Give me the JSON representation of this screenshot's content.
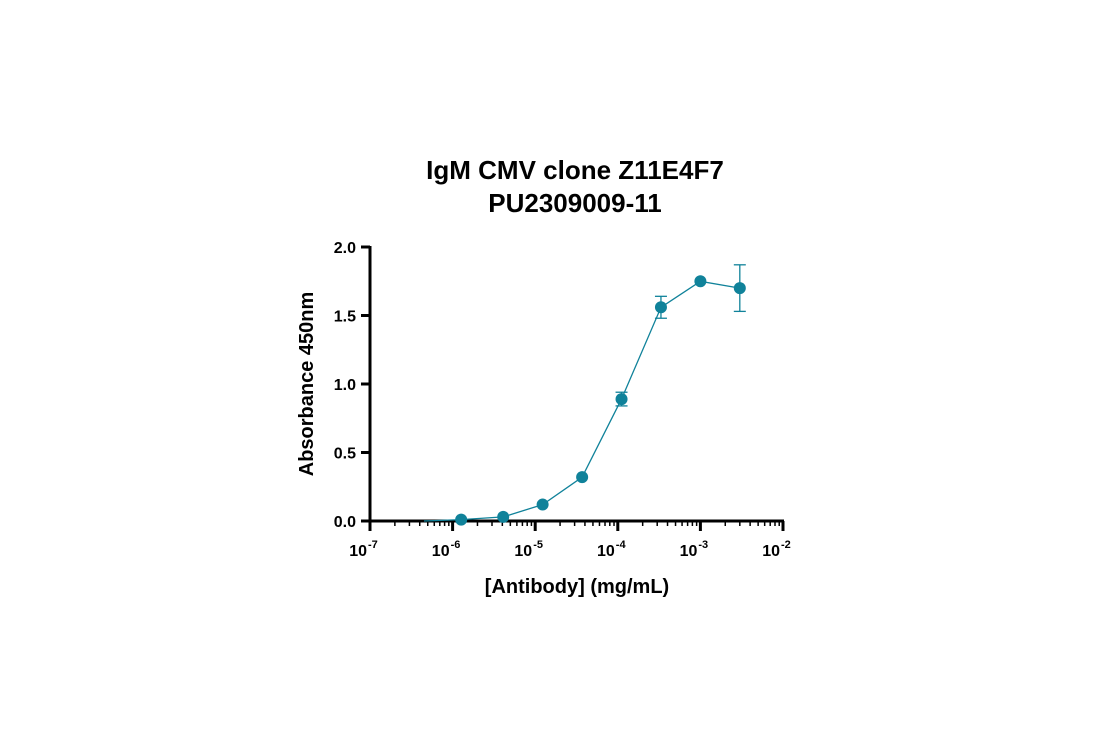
{
  "chart_data": {
    "type": "scatter",
    "title_lines": [
      "IgM CMV clone Z11E4F7",
      "PU2309009-11"
    ],
    "xlabel": "[Antibody] (mg/mL)",
    "ylabel": "Absorbance 450nm",
    "x_scale": "log10",
    "xlim": [
      1e-07,
      0.01
    ],
    "ylim": [
      0,
      2.0
    ],
    "x_ticks": [
      {
        "base": "10",
        "exp": "-7"
      },
      {
        "base": "10",
        "exp": "-6"
      },
      {
        "base": "10",
        "exp": "-5"
      },
      {
        "base": "10",
        "exp": "-4"
      },
      {
        "base": "10",
        "exp": "-3"
      },
      {
        "base": "10",
        "exp": "-2"
      }
    ],
    "y_ticks": [
      "0.0",
      "0.5",
      "1.0",
      "1.5",
      "2.0"
    ],
    "marker_color": "#10829a",
    "series": [
      {
        "points": [
          {
            "x": 1.27e-06,
            "y": 0.01,
            "err": 0.0
          },
          {
            "x": 4.1e-06,
            "y": 0.03,
            "err": 0.0
          },
          {
            "x": 1.23e-05,
            "y": 0.12,
            "err": 0.0
          },
          {
            "x": 3.7e-05,
            "y": 0.32,
            "err": 0.0
          },
          {
            "x": 0.000111,
            "y": 0.89,
            "err": 0.05
          },
          {
            "x": 0.000333,
            "y": 1.56,
            "err": 0.08
          },
          {
            "x": 0.001,
            "y": 1.75,
            "err": 0.0
          },
          {
            "x": 0.003,
            "y": 1.7,
            "err": 0.17
          }
        ],
        "fit_curve": [
          {
            "x": 4.5e-07,
            "y": 0.0
          },
          {
            "x": 1.27e-06,
            "y": 0.01
          },
          {
            "x": 4.1e-06,
            "y": 0.03
          },
          {
            "x": 1.23e-05,
            "y": 0.12
          },
          {
            "x": 3.7e-05,
            "y": 0.32
          },
          {
            "x": 0.000111,
            "y": 0.89
          },
          {
            "x": 0.000333,
            "y": 1.56
          },
          {
            "x": 0.001,
            "y": 1.75
          },
          {
            "x": 0.003,
            "y": 1.7
          }
        ]
      }
    ]
  }
}
